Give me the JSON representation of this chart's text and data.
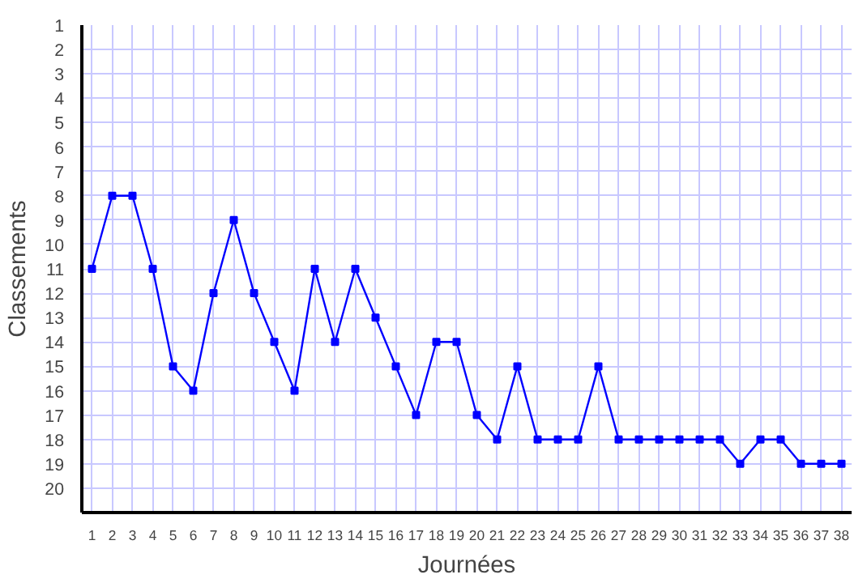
{
  "chart_data": {
    "type": "line",
    "xlabel": "Journées",
    "ylabel": "Classements",
    "x": [
      1,
      2,
      3,
      4,
      5,
      6,
      7,
      8,
      9,
      10,
      11,
      12,
      13,
      14,
      15,
      16,
      17,
      18,
      19,
      20,
      21,
      22,
      23,
      24,
      25,
      26,
      27,
      28,
      29,
      30,
      31,
      32,
      33,
      34,
      35,
      36,
      37,
      38
    ],
    "series": [
      {
        "color": "#0000ff",
        "values": [
          11,
          8,
          8,
          11,
          15,
          16,
          12,
          9,
          12,
          14,
          16,
          11,
          14,
          11,
          13,
          15,
          17,
          14,
          14,
          17,
          18,
          15,
          18,
          18,
          18,
          15,
          18,
          18,
          18,
          18,
          18,
          18,
          19,
          18,
          18,
          19,
          19,
          19
        ]
      }
    ],
    "xlim": [
      0.5,
      38.5
    ],
    "ylim": [
      21,
      1
    ],
    "xticks": [
      1,
      2,
      3,
      4,
      5,
      6,
      7,
      8,
      9,
      10,
      11,
      12,
      13,
      14,
      15,
      16,
      17,
      18,
      19,
      20,
      21,
      22,
      23,
      24,
      25,
      26,
      27,
      28,
      29,
      30,
      31,
      32,
      33,
      34,
      35,
      36,
      37,
      38
    ],
    "yticks": [
      1,
      2,
      3,
      4,
      5,
      6,
      7,
      8,
      9,
      10,
      11,
      12,
      13,
      14,
      15,
      16,
      17,
      18,
      19,
      20
    ],
    "grid": true,
    "marker": "square",
    "line_style": "solid"
  }
}
